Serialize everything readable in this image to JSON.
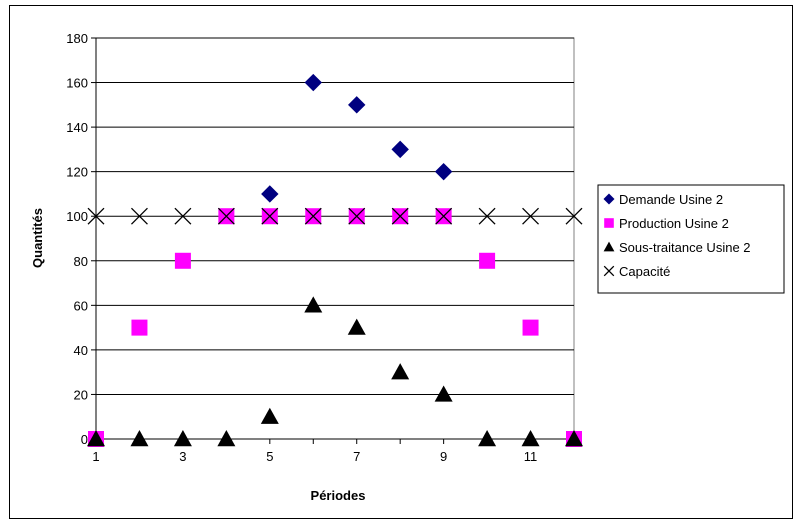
{
  "chart_data": {
    "type": "scatter",
    "xlabel": "Périodes",
    "ylabel": "Quantités",
    "xlim": [
      1,
      12
    ],
    "ylim": [
      0,
      180
    ],
    "x_ticks": [
      "1",
      "3",
      "5",
      "7",
      "9",
      "11"
    ],
    "y_ticks": [
      "0",
      "20",
      "40",
      "60",
      "80",
      "100",
      "120",
      "140",
      "160",
      "180"
    ],
    "grid": "horizontal",
    "legend_position": "right",
    "series": [
      {
        "name": "Demande Usine 2",
        "marker": "diamond",
        "color": "#000080",
        "points": [
          [
            5,
            110
          ],
          [
            6,
            160
          ],
          [
            7,
            150
          ],
          [
            8,
            130
          ],
          [
            9,
            120
          ]
        ]
      },
      {
        "name": "Production Usine 2",
        "marker": "square",
        "color": "#ff00ff",
        "points": [
          [
            1,
            0
          ],
          [
            2,
            50
          ],
          [
            3,
            80
          ],
          [
            4,
            100
          ],
          [
            5,
            100
          ],
          [
            6,
            100
          ],
          [
            7,
            100
          ],
          [
            8,
            100
          ],
          [
            9,
            100
          ],
          [
            10,
            80
          ],
          [
            11,
            50
          ],
          [
            12,
            0
          ]
        ]
      },
      {
        "name": "Sous-traitance Usine 2",
        "marker": "triangle",
        "color": "#000000",
        "points": [
          [
            1,
            0
          ],
          [
            2,
            0
          ],
          [
            3,
            0
          ],
          [
            4,
            0
          ],
          [
            5,
            10
          ],
          [
            6,
            60
          ],
          [
            7,
            50
          ],
          [
            8,
            30
          ],
          [
            9,
            20
          ],
          [
            10,
            0
          ],
          [
            11,
            0
          ],
          [
            12,
            0
          ]
        ]
      },
      {
        "name": "Capacité",
        "marker": "x",
        "color": "#000000",
        "points": [
          [
            1,
            100
          ],
          [
            2,
            100
          ],
          [
            3,
            100
          ],
          [
            4,
            100
          ],
          [
            5,
            100
          ],
          [
            6,
            100
          ],
          [
            7,
            100
          ],
          [
            8,
            100
          ],
          [
            9,
            100
          ],
          [
            10,
            100
          ],
          [
            11,
            100
          ],
          [
            12,
            100
          ]
        ]
      }
    ]
  }
}
